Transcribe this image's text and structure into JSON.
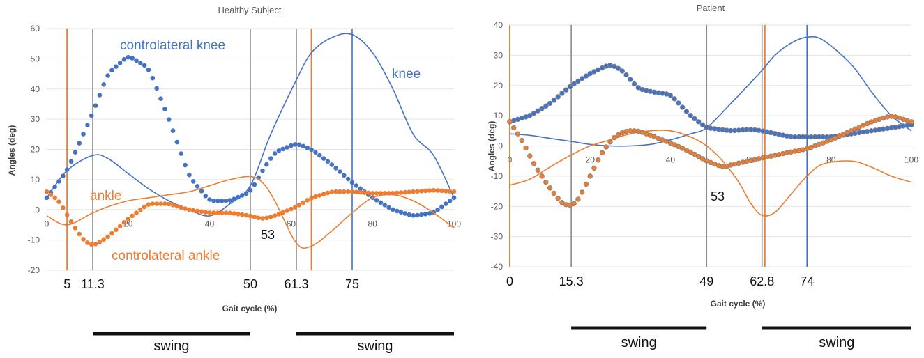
{
  "colors": {
    "blue": "#4472C4",
    "orange": "#ED7D31",
    "gray": "#8C8C8C",
    "black": "#111111"
  },
  "chart_data": [
    {
      "type": "line",
      "title": "Healthy Subject",
      "xlabel": "Gait cycle (%)",
      "ylabel": "Angles (deg)",
      "xlim": [
        0,
        100
      ],
      "ylim": [
        -20,
        60
      ],
      "xticks": [
        0,
        20,
        40,
        60,
        80,
        100
      ],
      "yticks": [
        -20,
        -10,
        0,
        10,
        20,
        30,
        40,
        50,
        60
      ],
      "series": [
        {
          "name": "knee",
          "style": "line",
          "color": "blue",
          "x": [
            0,
            5,
            11.3,
            15,
            20,
            25,
            30,
            35,
            40,
            45,
            50,
            55,
            61.3,
            65,
            70,
            75,
            80,
            85,
            90,
            95,
            100
          ],
          "y": [
            4,
            13,
            18,
            17,
            12,
            7,
            3,
            0,
            -2,
            2,
            8,
            25,
            43,
            52,
            57,
            58,
            52,
            40,
            25,
            18,
            4
          ]
        },
        {
          "name": "controlateral knee",
          "style": "dots",
          "color": "blue",
          "x": [
            0,
            5,
            11.3,
            15,
            20,
            25,
            30,
            35,
            40,
            45,
            50,
            53,
            56,
            61.3,
            65,
            70,
            75,
            80,
            85,
            90,
            95,
            100
          ],
          "y": [
            4,
            13,
            32,
            45,
            51,
            47,
            30,
            11,
            3,
            3,
            6,
            13,
            19,
            22,
            20,
            15,
            9,
            4,
            0,
            -2,
            -1,
            4
          ]
        },
        {
          "name": "ankle",
          "style": "line",
          "color": "orange",
          "x": [
            0,
            5,
            11.3,
            15,
            20,
            25,
            30,
            35,
            40,
            45,
            50,
            53,
            56,
            61.3,
            65,
            70,
            75,
            80,
            85,
            90,
            95,
            100
          ],
          "y": [
            -2,
            -5,
            -1,
            1,
            3,
            4,
            5,
            6,
            8,
            10,
            11,
            9,
            3,
            -11,
            -12,
            -7,
            -1,
            4,
            5,
            3,
            -1,
            -6
          ]
        },
        {
          "name": "controlateral ankle",
          "style": "dots",
          "color": "orange",
          "x": [
            0,
            3,
            6,
            9,
            11.3,
            15,
            20,
            25,
            30,
            35,
            40,
            45,
            50,
            53,
            56,
            61.3,
            65,
            70,
            75,
            80,
            85,
            90,
            95,
            100
          ],
          "y": [
            6,
            3,
            -4,
            -10,
            -12,
            -9,
            -3,
            2,
            2,
            0,
            -1,
            -1,
            -2,
            -3,
            -2,
            1,
            4,
            6,
            6,
            5.5,
            5.5,
            6,
            6.5,
            6
          ]
        }
      ],
      "event_lines": [
        {
          "x": 5,
          "color": "orange",
          "label": "5"
        },
        {
          "x": 11.3,
          "color": "gray",
          "label": "11.3"
        },
        {
          "x": 50,
          "color": "gray",
          "label": "50"
        },
        {
          "x": 61.3,
          "color": "gray",
          "label": "61.3"
        },
        {
          "x": 65,
          "color": "orange",
          "label": ""
        },
        {
          "x": 75,
          "color": "blue",
          "label": "75"
        }
      ],
      "annotations": [
        {
          "text": "controlateral knee",
          "color": "blue"
        },
        {
          "text": "knee",
          "color": "blue"
        },
        {
          "text": "ankle",
          "color": "orange"
        },
        {
          "text": "controlateral ankle",
          "color": "orange"
        },
        {
          "text": "53",
          "color": "black"
        }
      ],
      "swing_bars": [
        {
          "from": 11.3,
          "to": 50,
          "label": "swing"
        },
        {
          "from": 61.3,
          "to": 100,
          "label": "swing"
        }
      ]
    },
    {
      "type": "line",
      "title": "Patient",
      "xlabel": "Gait cycle (%)",
      "ylabel": "Angles (deg)",
      "xlim": [
        0,
        100
      ],
      "ylim": [
        -40,
        40
      ],
      "xticks": [
        0,
        20,
        40,
        60,
        80,
        100
      ],
      "yticks": [
        -40,
        -30,
        -20,
        -10,
        0,
        10,
        20,
        30,
        40
      ],
      "series": [
        {
          "name": "knee",
          "style": "line",
          "color": "blue",
          "x": [
            0,
            5,
            10,
            15.3,
            20,
            25,
            30,
            35,
            40,
            45,
            49,
            55,
            62.8,
            66,
            70,
            74,
            78,
            85,
            90,
            95,
            100
          ],
          "y": [
            4,
            3.5,
            2.5,
            1.5,
            0.5,
            0,
            0,
            0.5,
            2,
            4,
            6,
            14,
            25,
            30,
            34,
            36,
            35,
            27,
            18,
            10,
            5
          ]
        },
        {
          "name": "controlateral knee",
          "style": "dots",
          "color": "blue",
          "x": [
            0,
            5,
            10,
            15.3,
            20,
            25,
            28,
            32,
            35,
            40,
            45,
            49,
            55,
            60,
            62.8,
            70,
            74,
            80,
            85,
            90,
            95,
            100
          ],
          "y": [
            8,
            10,
            14,
            20,
            24,
            27,
            25,
            19,
            18,
            17,
            10,
            6,
            5,
            5.5,
            5,
            3,
            3,
            3,
            4,
            5,
            6,
            7
          ]
        },
        {
          "name": "ankle",
          "style": "line",
          "color": "orange",
          "x": [
            0,
            5,
            10,
            15.3,
            20,
            25,
            30,
            35,
            40,
            45,
            49,
            53,
            57,
            60,
            62.8,
            66,
            70,
            74,
            78,
            85,
            90,
            95,
            100
          ],
          "y": [
            -13,
            -11,
            -7,
            -3,
            0,
            2,
            4,
            5,
            5,
            3,
            0,
            -5,
            -12,
            -19,
            -23,
            -22,
            -16,
            -10,
            -6,
            -5,
            -7,
            -10,
            -12
          ]
        },
        {
          "name": "controlateral ankle",
          "style": "dots",
          "color": "orange",
          "x": [
            0,
            3,
            6,
            10,
            13,
            15.3,
            17,
            20,
            23,
            26,
            29,
            32,
            36,
            40,
            45,
            49,
            53,
            56,
            62.8,
            70,
            74,
            80,
            85,
            90,
            95,
            100
          ],
          "y": [
            8,
            2,
            -6,
            -14,
            -19,
            -20,
            -18,
            -10,
            -2,
            3,
            5,
            5,
            3,
            1,
            -2,
            -5,
            -7,
            -6,
            -4,
            -2,
            -1,
            2,
            5,
            8,
            10,
            8
          ]
        }
      ],
      "event_lines": [
        {
          "x": 0,
          "color": "orange",
          "label": "0"
        },
        {
          "x": 15.3,
          "color": "gray",
          "label": "15.3"
        },
        {
          "x": 49,
          "color": "gray",
          "label": "49"
        },
        {
          "x": 62.8,
          "color": "gray",
          "label": "62.8"
        },
        {
          "x": 63.5,
          "color": "orange",
          "label": ""
        },
        {
          "x": 74,
          "color": "blue",
          "label": "74"
        }
      ],
      "annotations": [
        {
          "text": "53",
          "color": "black"
        }
      ],
      "swing_bars": [
        {
          "from": 15.3,
          "to": 49,
          "label": "swing"
        },
        {
          "from": 62.8,
          "to": 100,
          "label": "swing"
        }
      ]
    }
  ]
}
